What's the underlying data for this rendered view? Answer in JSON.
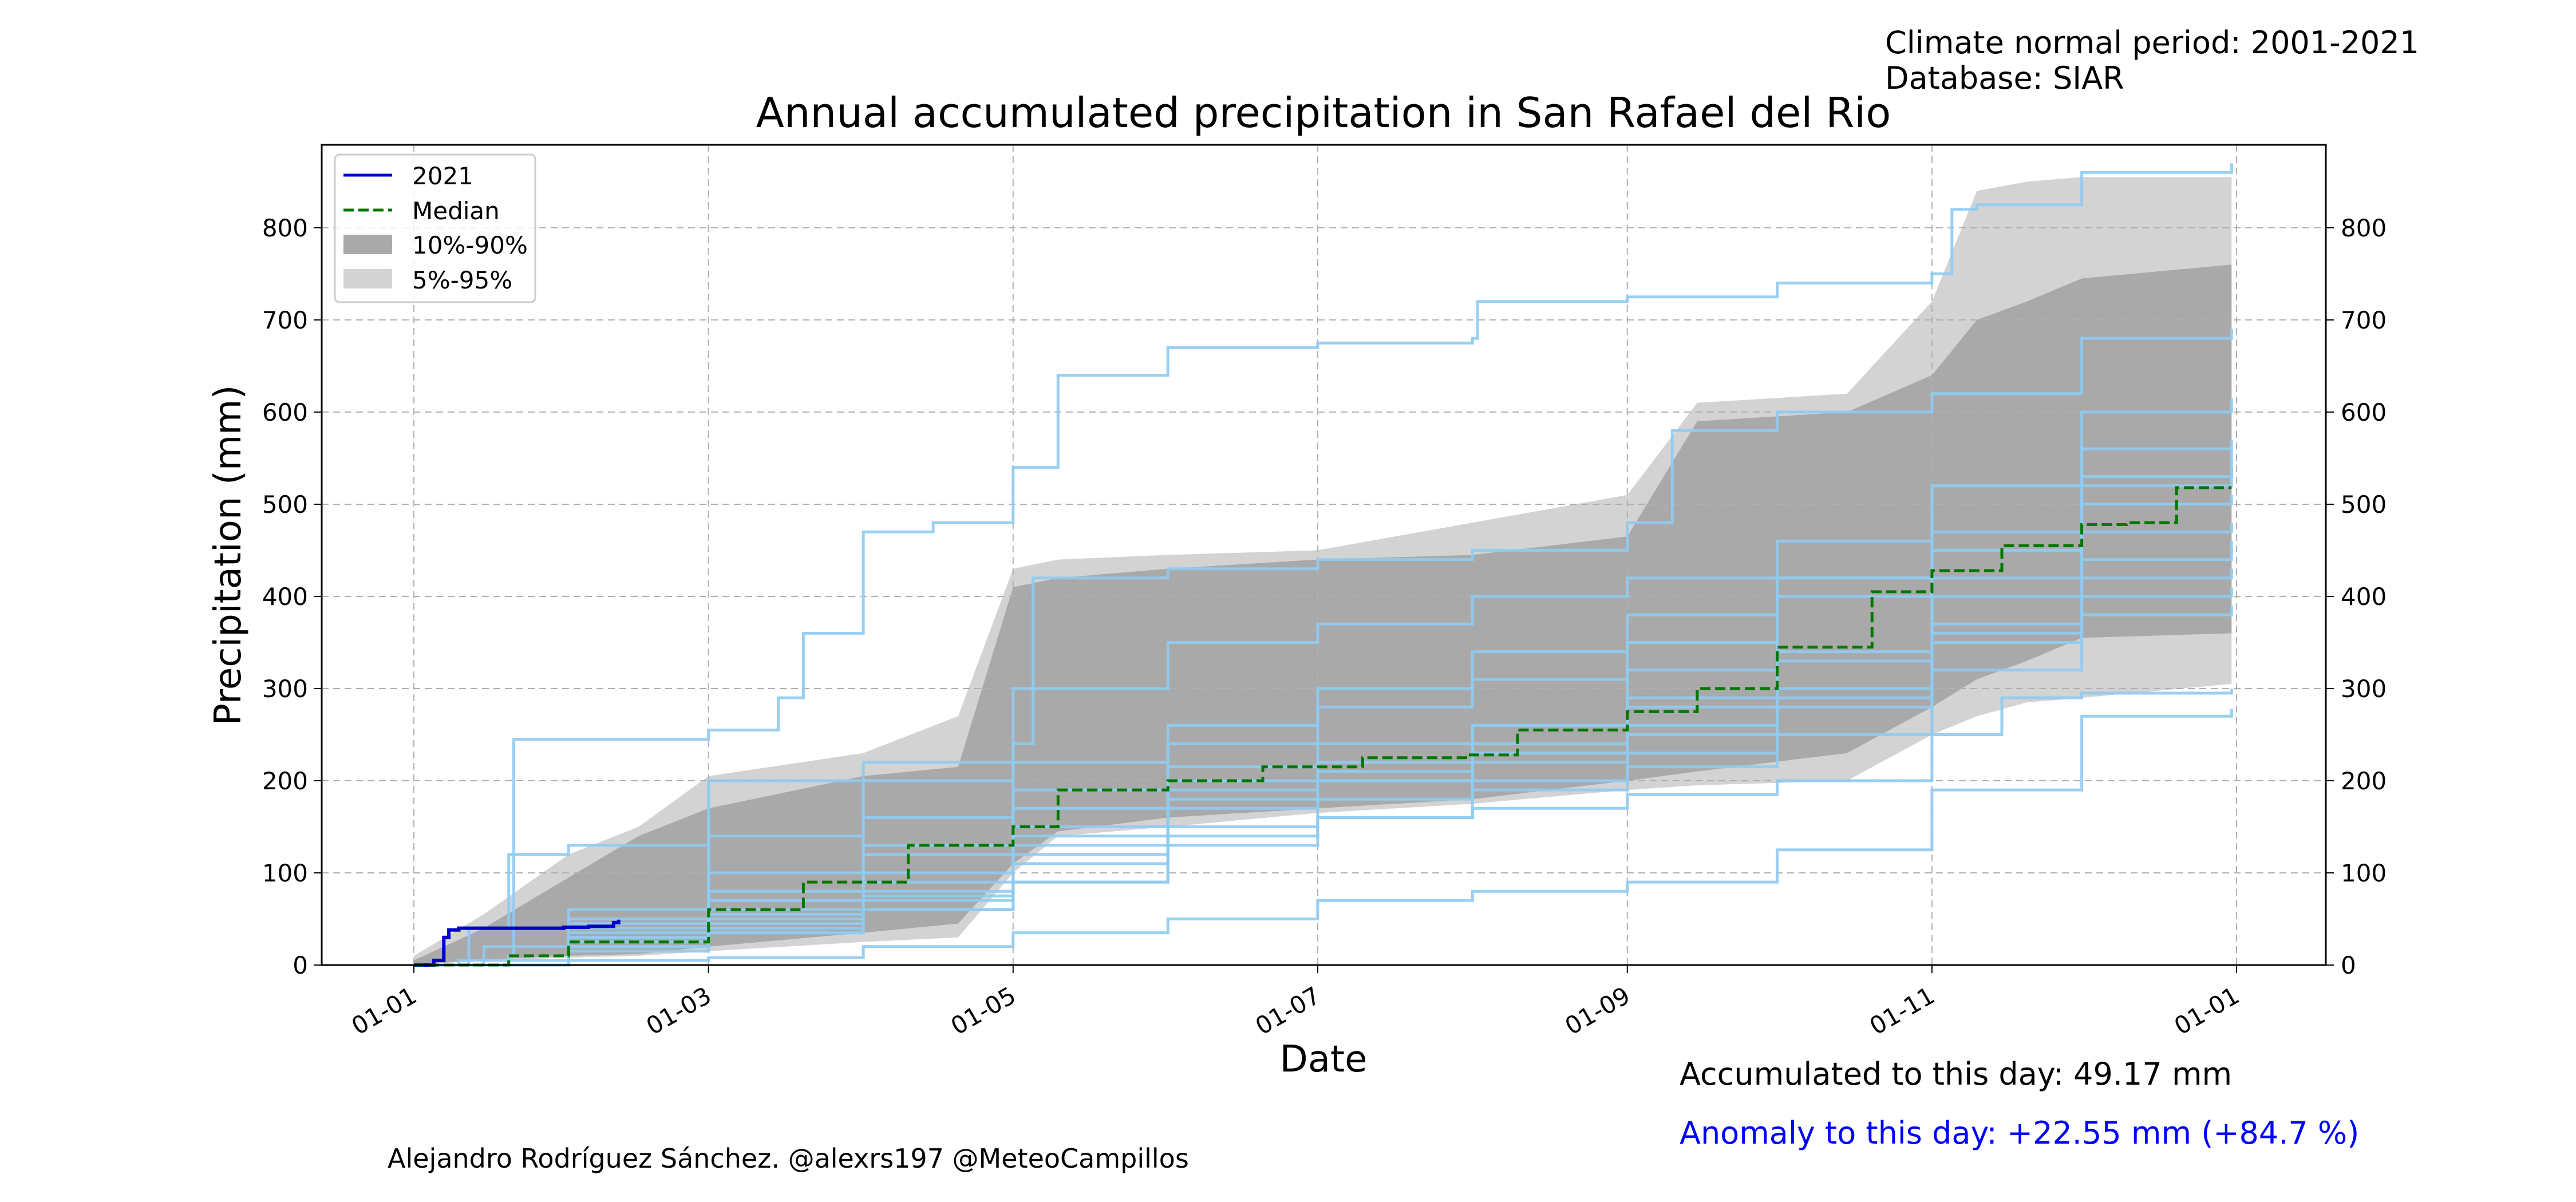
{
  "header": {
    "climate_normal": "Climate normal period: 2001-2021",
    "database": "Database: SIAR"
  },
  "footer": {
    "credit": "Alejandro Rodríguez Sánchez. @alexrs197 @MeteoCampillos",
    "accumulated": "Accumulated to this day: 49.17 mm",
    "anomaly": "Anomaly to this day: +22.55 mm (+84.7 %)"
  },
  "colors": {
    "current_year": "#0000cc",
    "median": "#007700",
    "band_10_90": "#a9a9a9",
    "band_5_95": "#d3d3d3",
    "historical_years": "#8fcbf0",
    "anomaly_text": "#0000ff"
  },
  "chart_data": {
    "type": "line",
    "title": "Annual accumulated precipitation in San Rafael  del  Rio",
    "xlabel": "Date",
    "ylabel": "Precipitation (mm)",
    "x_ticks": [
      "01-01",
      "01-03",
      "01-05",
      "01-07",
      "01-09",
      "01-11",
      "01-01"
    ],
    "y_ticks": [
      "0",
      "100",
      "200",
      "300",
      "400",
      "500",
      "600",
      "700",
      "800"
    ],
    "ylim": [
      0,
      890
    ],
    "grid": true,
    "legend_position": "upper left",
    "legend": [
      "2021",
      "Median",
      "10%-90%",
      "5%-95%"
    ],
    "series": [
      {
        "name": "2021",
        "style": "solid",
        "x": [
          "01-01",
          "01-05",
          "01-07",
          "01-08",
          "01-10",
          "01-15",
          "01-31",
          "02-05",
          "02-10",
          "02-11"
        ],
        "y": [
          0,
          5,
          30,
          38,
          40,
          40,
          41,
          42,
          46,
          49.17
        ]
      },
      {
        "name": "Median",
        "style": "dashed",
        "x": [
          "01-01",
          "01-20",
          "02-01",
          "03-01",
          "03-20",
          "04-10",
          "05-01",
          "05-10",
          "06-01",
          "06-20",
          "07-10",
          "07-31",
          "08-10",
          "09-01",
          "09-15",
          "10-01",
          "10-20",
          "11-01",
          "11-15",
          "12-01",
          "12-10",
          "12-20",
          "12-31"
        ],
        "y": [
          0,
          10,
          25,
          60,
          90,
          130,
          150,
          190,
          200,
          215,
          225,
          228,
          255,
          275,
          300,
          345,
          405,
          428,
          455,
          478,
          480,
          518,
          518
        ]
      }
    ],
    "bands": [
      {
        "name": "5%-95%",
        "x": [
          "01-01",
          "01-15",
          "02-01",
          "02-15",
          "03-01",
          "04-01",
          "04-20",
          "05-01",
          "05-10",
          "06-01",
          "07-01",
          "08-01",
          "09-01",
          "09-15",
          "10-15",
          "11-01",
          "11-10",
          "11-20",
          "12-01",
          "12-31"
        ],
        "lower": [
          0,
          5,
          8,
          10,
          15,
          25,
          30,
          100,
          140,
          150,
          165,
          175,
          190,
          195,
          200,
          250,
          270,
          285,
          290,
          305
        ],
        "upper": [
          10,
          55,
          120,
          150,
          205,
          230,
          270,
          430,
          440,
          445,
          450,
          480,
          510,
          610,
          620,
          720,
          840,
          850,
          855,
          855
        ]
      },
      {
        "name": "10%-90%",
        "x": [
          "01-01",
          "01-15",
          "02-01",
          "02-15",
          "03-01",
          "04-01",
          "04-20",
          "05-01",
          "05-10",
          "06-01",
          "07-01",
          "08-01",
          "09-01",
          "09-15",
          "10-15",
          "11-01",
          "11-10",
          "11-20",
          "12-01",
          "12-31"
        ],
        "lower": [
          0,
          6,
          10,
          12,
          20,
          35,
          45,
          110,
          145,
          160,
          170,
          180,
          200,
          210,
          230,
          280,
          310,
          330,
          355,
          360
        ],
        "upper": [
          5,
          40,
          95,
          140,
          170,
          205,
          215,
          410,
          420,
          430,
          440,
          445,
          465,
          590,
          600,
          640,
          700,
          720,
          745,
          760
        ]
      }
    ],
    "historical_years": [
      {
        "x": [
          "01-01",
          "01-20",
          "01-21",
          "03-01",
          "03-15",
          "03-20",
          "04-01",
          "04-15",
          "05-01",
          "05-10",
          "06-01",
          "07-01",
          "08-01",
          "08-02",
          "09-01",
          "10-01",
          "11-01",
          "11-05",
          "11-10",
          "12-01",
          "12-31"
        ],
        "y": [
          0,
          10,
          245,
          255,
          290,
          360,
          470,
          480,
          540,
          640,
          670,
          675,
          680,
          720,
          725,
          740,
          750,
          820,
          825,
          860,
          870
        ]
      },
      {
        "x": [
          "01-01",
          "01-12",
          "01-20",
          "02-01",
          "03-01",
          "04-01",
          "05-01",
          "05-05",
          "06-01",
          "07-01",
          "08-01",
          "09-01",
          "09-10",
          "10-01",
          "11-01",
          "12-01",
          "12-31"
        ],
        "y": [
          0,
          40,
          120,
          130,
          200,
          220,
          240,
          420,
          430,
          440,
          450,
          480,
          580,
          600,
          620,
          680,
          690
        ]
      },
      {
        "x": [
          "01-01",
          "02-01",
          "03-01",
          "04-01",
          "05-01",
          "06-01",
          "07-01",
          "08-01",
          "09-01",
          "10-01",
          "11-01",
          "12-01",
          "12-31"
        ],
        "y": [
          0,
          5,
          8,
          20,
          35,
          50,
          70,
          80,
          90,
          125,
          190,
          270,
          278
        ]
      },
      {
        "x": [
          "01-01",
          "01-10",
          "02-01",
          "03-01",
          "04-01",
          "05-01",
          "06-01",
          "07-01",
          "08-01",
          "09-01",
          "10-01",
          "11-01",
          "11-15",
          "12-01",
          "12-31"
        ],
        "y": [
          0,
          5,
          20,
          35,
          60,
          90,
          140,
          160,
          170,
          185,
          200,
          250,
          290,
          295,
          300
        ]
      },
      {
        "x": [
          "01-01",
          "01-15",
          "02-01",
          "03-01",
          "04-01",
          "05-01",
          "06-01",
          "07-01",
          "08-01",
          "09-01",
          "10-01",
          "11-01",
          "12-01",
          "12-31"
        ],
        "y": [
          0,
          20,
          30,
          50,
          80,
          120,
          170,
          200,
          230,
          260,
          300,
          350,
          380,
          390
        ]
      },
      {
        "x": [
          "01-01",
          "02-01",
          "03-01",
          "04-01",
          "05-01",
          "06-01",
          "07-01",
          "08-01",
          "09-01",
          "10-01",
          "11-01",
          "12-01",
          "12-31"
        ],
        "y": [
          0,
          40,
          60,
          90,
          140,
          180,
          200,
          220,
          250,
          290,
          360,
          420,
          430
        ]
      },
      {
        "x": [
          "01-01",
          "02-01",
          "03-01",
          "04-01",
          "05-01",
          "06-01",
          "07-01",
          "08-01",
          "09-01",
          "10-01",
          "11-01",
          "12-01",
          "12-31"
        ],
        "y": [
          0,
          30,
          55,
          100,
          150,
          200,
          210,
          240,
          280,
          340,
          420,
          470,
          480
        ]
      },
      {
        "x": [
          "01-01",
          "02-01",
          "03-01",
          "04-01",
          "05-01",
          "06-01",
          "07-01",
          "08-01",
          "09-01",
          "10-01",
          "11-01",
          "12-01",
          "12-31"
        ],
        "y": [
          0,
          25,
          45,
          75,
          110,
          150,
          180,
          200,
          230,
          280,
          400,
          520,
          540
        ]
      },
      {
        "x": [
          "01-01",
          "02-01",
          "03-01",
          "04-01",
          "05-01",
          "06-01",
          "07-01",
          "08-01",
          "09-01",
          "10-01",
          "11-01",
          "12-01",
          "12-31"
        ],
        "y": [
          0,
          15,
          35,
          70,
          130,
          190,
          220,
          260,
          320,
          420,
          520,
          560,
          570
        ]
      },
      {
        "x": [
          "01-01",
          "02-01",
          "03-01",
          "04-01",
          "05-01",
          "06-01",
          "07-01",
          "08-01",
          "09-01",
          "10-01",
          "11-01",
          "12-01",
          "12-31"
        ],
        "y": [
          0,
          50,
          100,
          160,
          220,
          260,
          300,
          340,
          380,
          420,
          470,
          530,
          560
        ]
      },
      {
        "x": [
          "01-01",
          "02-01",
          "03-01",
          "04-01",
          "05-01",
          "06-01",
          "07-01",
          "08-01",
          "09-01",
          "10-01",
          "11-01",
          "12-01",
          "12-31"
        ],
        "y": [
          0,
          35,
          70,
          120,
          170,
          215,
          240,
          260,
          290,
          330,
          370,
          440,
          460
        ]
      },
      {
        "x": [
          "01-01",
          "02-01",
          "03-01",
          "04-01",
          "05-01",
          "06-01",
          "07-01",
          "08-01",
          "09-01",
          "10-01",
          "11-01",
          "12-01",
          "12-31"
        ],
        "y": [
          0,
          60,
          140,
          200,
          300,
          350,
          370,
          400,
          420,
          460,
          520,
          600,
          615
        ]
      },
      {
        "x": [
          "01-01",
          "02-01",
          "03-01",
          "04-01",
          "05-01",
          "06-01",
          "07-01",
          "08-01",
          "09-01",
          "10-01",
          "11-01",
          "12-01",
          "12-31"
        ],
        "y": [
          0,
          20,
          40,
          60,
          90,
          130,
          160,
          190,
          215,
          250,
          320,
          400,
          410
        ]
      },
      {
        "x": [
          "01-01",
          "02-01",
          "03-01",
          "04-01",
          "05-01",
          "06-01",
          "07-01",
          "08-01",
          "09-01",
          "10-01",
          "11-01",
          "12-01",
          "12-31"
        ],
        "y": [
          0,
          45,
          80,
          130,
          190,
          240,
          280,
          310,
          350,
          400,
          450,
          500,
          510
        ]
      }
    ]
  }
}
